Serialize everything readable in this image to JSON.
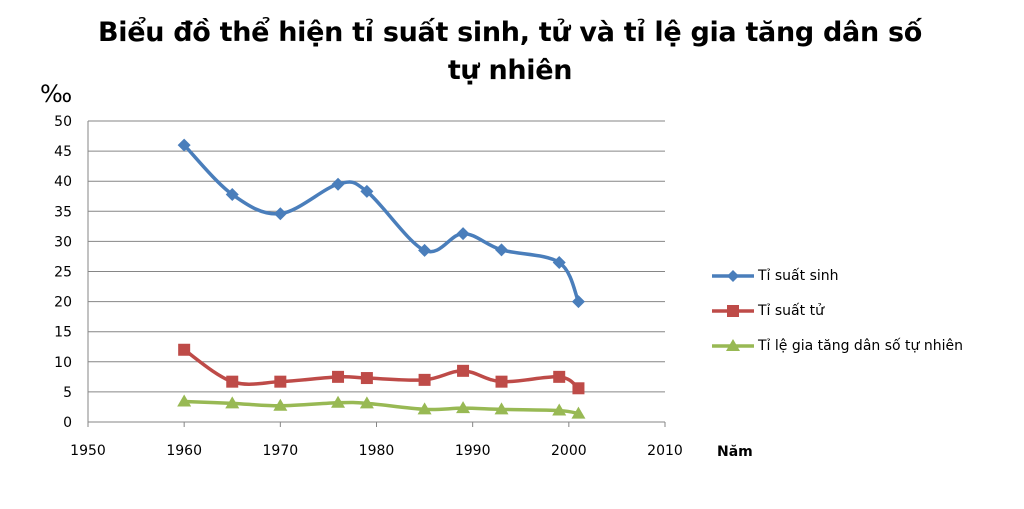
{
  "title_line1": "Biểu đồ thể hiện tỉ suất sinh, tử và tỉ lệ gia tăng dân số",
  "title_line2": "tự nhiên",
  "colors": {
    "birth": "#4a7ebb",
    "death": "#be4b48",
    "growth": "#98b954",
    "grid": "#868686",
    "axis": "#868686"
  },
  "chart_data": {
    "type": "scatter",
    "title": "Biểu đồ thể hiện tỉ suất sinh, tử và tỉ lệ gia tăng dân số tự nhiên",
    "ylabel": "‰",
    "xlabel": "Năm",
    "xlim": [
      1950,
      2010
    ],
    "ylim": [
      0,
      50
    ],
    "xticks": [
      1950,
      1960,
      1970,
      1980,
      1990,
      2000,
      2010
    ],
    "yticks": [
      0,
      5,
      10,
      15,
      20,
      25,
      30,
      35,
      40,
      45,
      50
    ],
    "grid": true,
    "legend_position": "right",
    "series": [
      {
        "name": "Tỉ suất sinh",
        "marker": "diamond",
        "x": [
          1960,
          1965,
          1970,
          1976,
          1979,
          1985,
          1989,
          1993,
          1999,
          2001
        ],
        "y": [
          46,
          37.8,
          34.6,
          39.5,
          38.3,
          28.5,
          31.3,
          28.6,
          26.5,
          20
        ]
      },
      {
        "name": "Tỉ suất tử",
        "marker": "square",
        "x": [
          1960,
          1965,
          1970,
          1976,
          1979,
          1985,
          1989,
          1993,
          1999,
          2001
        ],
        "y": [
          12,
          6.7,
          6.7,
          7.5,
          7.3,
          7,
          8.5,
          6.7,
          7.5,
          5.6
        ]
      },
      {
        "name": "Tỉ lệ gia tăng dân số tự nhiên",
        "marker": "triangle",
        "x": [
          1960,
          1965,
          1970,
          1976,
          1979,
          1985,
          1989,
          1993,
          1999,
          2001
        ],
        "y": [
          3.4,
          3.1,
          2.7,
          3.2,
          3.1,
          2.1,
          2.3,
          2.1,
          1.9,
          1.4
        ]
      }
    ]
  }
}
